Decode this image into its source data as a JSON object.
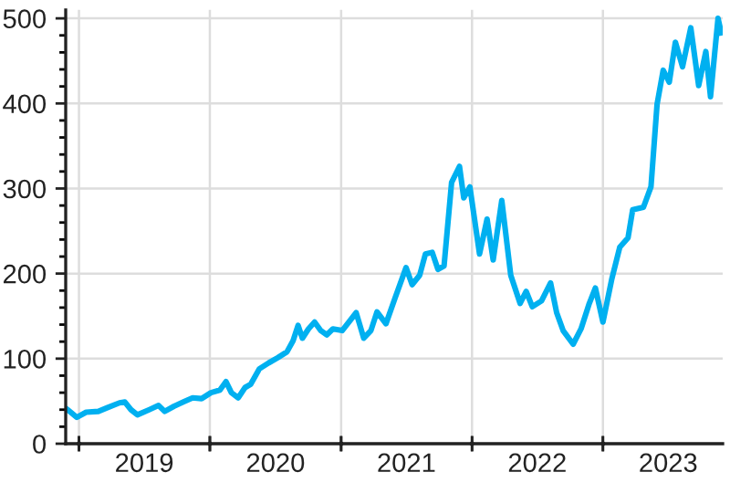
{
  "chart_data": {
    "type": "line",
    "x": [
      "2018-11-30",
      "2018-12-26",
      "2019-01-21",
      "2019-02-24",
      "2019-03-19",
      "2019-04-24",
      "2019-05-09",
      "2019-05-26",
      "2019-06-13",
      "2019-07-16",
      "2019-08-11",
      "2019-08-28",
      "2019-09-23",
      "2019-10-19",
      "2019-11-14",
      "2019-12-09",
      "2020-01-04",
      "2020-01-29",
      "2020-02-15",
      "2020-03-01",
      "2020-03-20",
      "2020-04-08",
      "2020-04-24",
      "2020-05-18",
      "2020-06-13",
      "2020-07-08",
      "2020-08-03",
      "2020-08-20",
      "2020-09-03",
      "2020-09-15",
      "2020-10-02",
      "2020-10-19",
      "2020-11-05",
      "2020-11-22",
      "2020-12-09",
      "2021-01-04",
      "2021-02-12",
      "2021-03-05",
      "2021-03-25",
      "2021-04-11",
      "2021-05-06",
      "2021-06-01",
      "2021-07-01",
      "2021-07-18",
      "2021-08-08",
      "2021-08-24",
      "2021-09-12",
      "2021-09-28",
      "2021-10-15",
      "2021-11-05",
      "2021-11-27",
      "2021-12-09",
      "2021-12-26",
      "2022-01-22",
      "2022-02-12",
      "2022-03-01",
      "2022-03-25",
      "2022-04-19",
      "2022-05-15",
      "2022-06-01",
      "2022-06-18",
      "2022-07-14",
      "2022-08-08",
      "2022-08-25",
      "2022-09-12",
      "2022-10-10",
      "2022-11-01",
      "2022-11-24",
      "2022-12-11",
      "2023-01-01",
      "2023-01-26",
      "2023-02-17",
      "2023-03-12",
      "2023-03-25",
      "2023-04-24",
      "2023-05-15",
      "2023-06-01",
      "2023-06-18",
      "2023-07-05",
      "2023-07-22",
      "2023-08-11",
      "2023-09-03",
      "2023-09-25",
      "2023-10-15",
      "2023-10-28",
      "2023-11-18",
      "2023-11-27"
    ],
    "series": [
      {
        "color": "#00b0f0",
        "values": [
          40,
          31,
          37,
          38,
          42,
          48,
          49,
          40,
          34,
          40,
          45,
          38,
          44,
          49,
          54,
          53,
          60,
          63,
          73,
          60,
          54,
          66,
          70,
          88,
          95,
          101,
          108,
          121,
          139,
          124,
          135,
          143,
          133,
          128,
          135,
          133,
          154,
          124,
          133,
          155,
          141,
          172,
          207,
          187,
          198,
          223,
          225,
          205,
          209,
          307,
          326,
          289,
          302,
          223,
          264,
          216,
          286,
          198,
          165,
          179,
          161,
          168,
          189,
          154,
          133,
          117,
          135,
          165,
          183,
          143,
          194,
          231,
          242,
          275,
          278,
          302,
          399,
          439,
          425,
          472,
          443,
          489,
          421,
          461,
          408,
          500,
          483
        ]
      }
    ],
    "xlim": [
      "2018-11-25",
      "2023-12-01"
    ],
    "xticks": [
      {
        "value": "2019-01-01",
        "label": null
      },
      {
        "value": "2019-07-02",
        "label": "2019"
      },
      {
        "value": "2020-01-01",
        "label": null
      },
      {
        "value": "2020-07-02",
        "label": "2020"
      },
      {
        "value": "2021-01-01",
        "label": null
      },
      {
        "value": "2021-07-02",
        "label": "2021"
      },
      {
        "value": "2022-01-01",
        "label": null
      },
      {
        "value": "2022-07-02",
        "label": "2022"
      },
      {
        "value": "2023-01-01",
        "label": null
      },
      {
        "value": "2023-07-02",
        "label": "2023"
      }
    ],
    "ylim": [
      0,
      510
    ],
    "yticks": [
      0,
      100,
      200,
      300,
      400,
      500
    ],
    "grid": true,
    "marker": "none",
    "line_style": "solid"
  }
}
